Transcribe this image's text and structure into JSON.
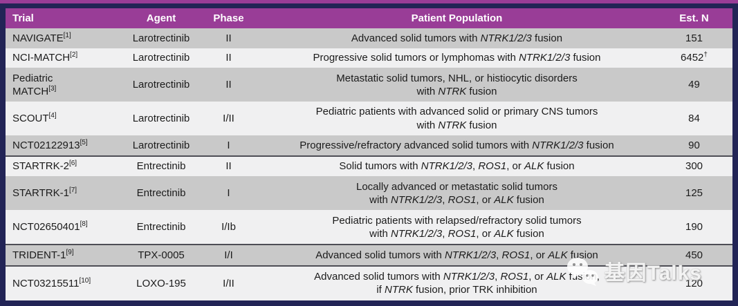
{
  "header": {
    "columns": [
      {
        "key": "trial",
        "label": "Trial",
        "align": "left"
      },
      {
        "key": "agent",
        "label": "Agent",
        "align": "center"
      },
      {
        "key": "phase",
        "label": "Phase",
        "align": "center"
      },
      {
        "key": "population",
        "label": "Patient Population",
        "align": "center"
      },
      {
        "key": "est_n",
        "label": "Est. N",
        "align": "center"
      }
    ]
  },
  "colors": {
    "header_purple": "#993D97",
    "frame_navy": "#222456",
    "row_dark": "#c9c9c9",
    "row_light": "#f0f0f1",
    "separator": "#4d4d55",
    "text": "#1b1b1b"
  },
  "rows": [
    {
      "trial_lines": [
        "NAVIGATE"
      ],
      "ref": "[1]",
      "agent": "Larotrectinib",
      "phase": "II",
      "population": [
        [
          {
            "t": "Advanced solid tumors with "
          },
          {
            "t": "NTRK1/2/3",
            "i": true
          },
          {
            "t": " fusion"
          }
        ]
      ],
      "est_n": "151",
      "est_sup": "",
      "shade": "dark",
      "sep_above": false
    },
    {
      "trial_lines": [
        "NCI-MATCH"
      ],
      "ref": "[2]",
      "agent": "Larotrectinib",
      "phase": "II",
      "population": [
        [
          {
            "t": "Progressive solid tumors or lymphomas with "
          },
          {
            "t": "NTRK1/2/3",
            "i": true
          },
          {
            "t": " fusion"
          }
        ]
      ],
      "est_n": "6452",
      "est_sup": "†",
      "shade": "light",
      "sep_above": false
    },
    {
      "trial_lines": [
        "Pediatric",
        "MATCH"
      ],
      "ref": "[3]",
      "agent": "Larotrectinib",
      "phase": "II",
      "population": [
        [
          {
            "t": "Metastatic solid tumors, NHL, or histiocytic disorders"
          }
        ],
        [
          {
            "t": "with "
          },
          {
            "t": "NTRK",
            "i": true
          },
          {
            "t": " fusion"
          }
        ]
      ],
      "est_n": "49",
      "est_sup": "",
      "shade": "dark",
      "sep_above": false
    },
    {
      "trial_lines": [
        "SCOUT"
      ],
      "ref": "[4]",
      "agent": "Larotrectinib",
      "phase": "I/II",
      "population": [
        [
          {
            "t": "Pediatric patients with advanced solid or primary CNS tumors"
          }
        ],
        [
          {
            "t": "with "
          },
          {
            "t": "NTRK",
            "i": true
          },
          {
            "t": " fusion"
          }
        ]
      ],
      "est_n": "84",
      "est_sup": "",
      "shade": "light",
      "sep_above": false
    },
    {
      "trial_lines": [
        "NCT02122913"
      ],
      "ref": "[5]",
      "agent": "Larotrectinib",
      "phase": "I",
      "population": [
        [
          {
            "t": "Progressive/refractory advanced solid tumors with "
          },
          {
            "t": "NTRK1/2/3",
            "i": true
          },
          {
            "t": " fusion"
          }
        ]
      ],
      "est_n": "90",
      "est_sup": "",
      "shade": "dark",
      "sep_above": false
    },
    {
      "trial_lines": [
        "STARTRK-2"
      ],
      "ref": "[6]",
      "agent": "Entrectinib",
      "phase": "II",
      "population": [
        [
          {
            "t": "Solid tumors with "
          },
          {
            "t": "NTRK1/2/3",
            "i": true
          },
          {
            "t": ", "
          },
          {
            "t": "ROS1",
            "i": true
          },
          {
            "t": ", or "
          },
          {
            "t": "ALK",
            "i": true
          },
          {
            "t": " fusion"
          }
        ]
      ],
      "est_n": "300",
      "est_sup": "",
      "shade": "light",
      "sep_above": true
    },
    {
      "trial_lines": [
        "STARTRK-1"
      ],
      "ref": "[7]",
      "agent": "Entrectinib",
      "phase": "I",
      "population": [
        [
          {
            "t": "Locally advanced or metastatic solid tumors"
          }
        ],
        [
          {
            "t": "with "
          },
          {
            "t": "NTRK1/2/3",
            "i": true
          },
          {
            "t": ", "
          },
          {
            "t": "ROS1",
            "i": true
          },
          {
            "t": ", or "
          },
          {
            "t": "ALK",
            "i": true
          },
          {
            "t": " fusion"
          }
        ]
      ],
      "est_n": "125",
      "est_sup": "",
      "shade": "dark",
      "sep_above": false
    },
    {
      "trial_lines": [
        "NCT02650401"
      ],
      "ref": "[8]",
      "agent": "Entrectinib",
      "phase": "I/Ib",
      "population": [
        [
          {
            "t": "Pediatric patients with relapsed/refractory solid tumors"
          }
        ],
        [
          {
            "t": "with "
          },
          {
            "t": "NTRK1/2/3",
            "i": true
          },
          {
            "t": ", "
          },
          {
            "t": "ROS1",
            "i": true
          },
          {
            "t": ", or "
          },
          {
            "t": "ALK",
            "i": true
          },
          {
            "t": " fusion"
          }
        ]
      ],
      "est_n": "190",
      "est_sup": "",
      "shade": "light",
      "sep_above": false
    },
    {
      "trial_lines": [
        "TRIDENT-1"
      ],
      "ref": "[9]",
      "agent": "TPX-0005",
      "phase": "I/I",
      "population": [
        [
          {
            "t": "Advanced solid tumors with "
          },
          {
            "t": "NTRK1/2/3",
            "i": true
          },
          {
            "t": ", "
          },
          {
            "t": "ROS1",
            "i": true
          },
          {
            "t": ", or "
          },
          {
            "t": "ALK",
            "i": true
          },
          {
            "t": " fusion"
          }
        ]
      ],
      "est_n": "450",
      "est_sup": "",
      "shade": "dark",
      "sep_above": true
    },
    {
      "trial_lines": [
        "NCT03215511"
      ],
      "ref": "[10]",
      "agent": "LOXO-195",
      "phase": "I/II",
      "population": [
        [
          {
            "t": "Advanced solid tumors with "
          },
          {
            "t": "NTRK1/2/3",
            "i": true
          },
          {
            "t": ", "
          },
          {
            "t": "ROS1",
            "i": true
          },
          {
            "t": ", or "
          },
          {
            "t": "ALK",
            "i": true
          },
          {
            "t": " fusion,"
          }
        ],
        [
          {
            "t": "if "
          },
          {
            "t": "NTRK",
            "i": true
          },
          {
            "t": " fusion, prior TRK inhibition"
          }
        ]
      ],
      "est_n": "120",
      "est_sup": "",
      "shade": "light",
      "sep_above": true
    }
  ],
  "watermark": {
    "text": "基因Talks",
    "icon": "wechat-icon"
  }
}
